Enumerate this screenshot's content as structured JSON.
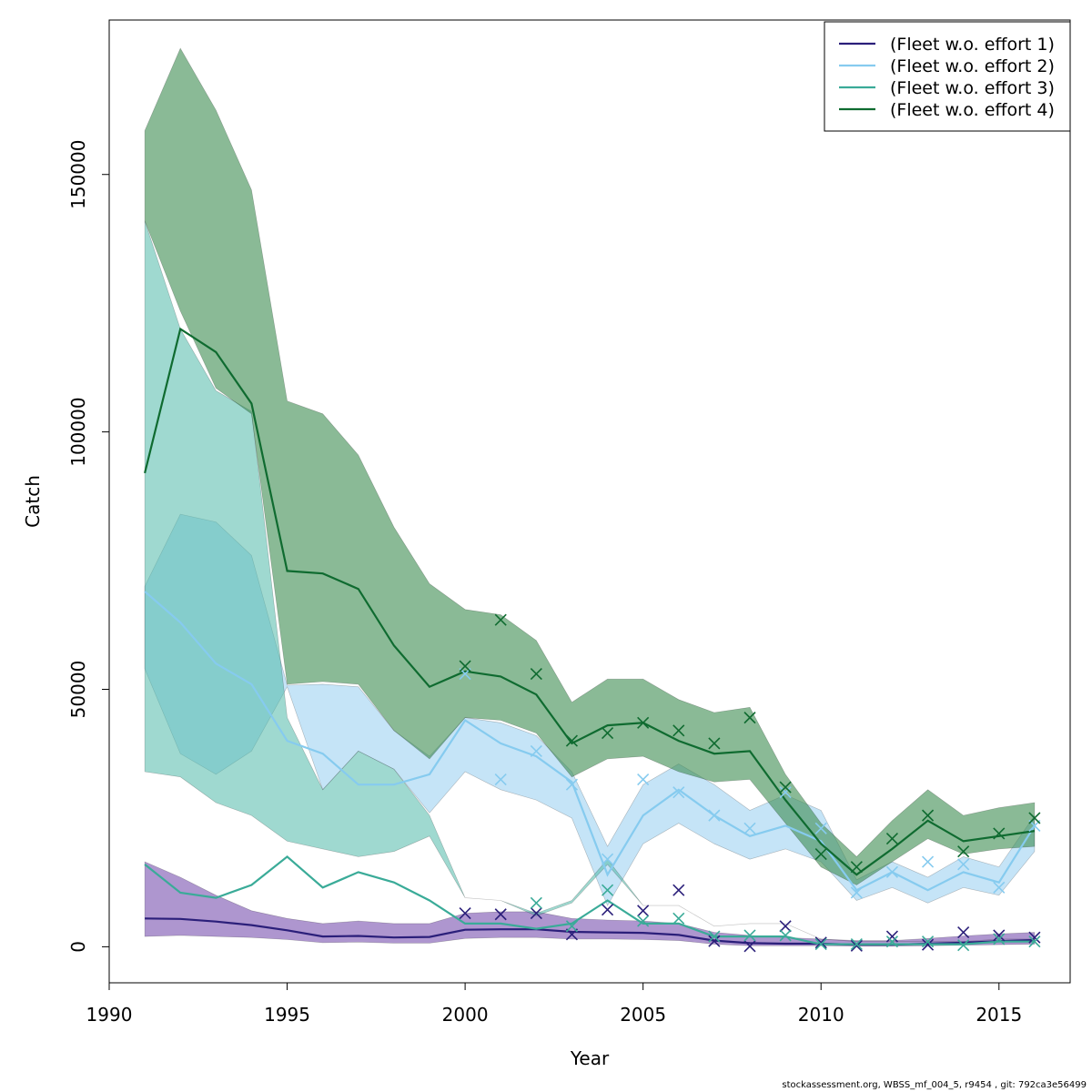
{
  "chart_data": {
    "type": "line",
    "xlabel": "Year",
    "ylabel": "Catch",
    "xlim": [
      1990,
      2017
    ],
    "ylim": [
      -7000,
      180000
    ],
    "xticks": [
      1990,
      1995,
      2000,
      2005,
      2010,
      2015
    ],
    "yticks": [
      0,
      50000,
      100000,
      150000
    ],
    "legend_position": "top-right",
    "x": [
      1991,
      1992,
      1993,
      1994,
      1995,
      1996,
      1997,
      1998,
      1999,
      2000,
      2001,
      2002,
      2003,
      2004,
      2005,
      2006,
      2007,
      2008,
      2009,
      2010,
      2011,
      2012,
      2013,
      2014,
      2015,
      2016
    ],
    "series": [
      {
        "name": "(Fleet w.o. effort 1)",
        "line_color": "#2b1f7a",
        "band_color": "rgba(120,80,175,0.6)",
        "fit": [
          5500,
          5400,
          4900,
          4200,
          3200,
          2000,
          2100,
          1800,
          1900,
          3300,
          3400,
          3400,
          2900,
          2800,
          2700,
          2300,
          1200,
          700,
          600,
          600,
          400,
          400,
          600,
          800,
          1100,
          1300
        ],
        "lower": [
          2000,
          2200,
          2000,
          1800,
          1400,
          800,
          900,
          700,
          700,
          1600,
          1800,
          1800,
          1500,
          1500,
          1400,
          1200,
          500,
          200,
          200,
          200,
          100,
          100,
          200,
          300,
          400,
          500
        ],
        "upper": [
          16500,
          13500,
          10000,
          7000,
          5500,
          4500,
          5000,
          4500,
          4500,
          6500,
          6800,
          6800,
          5500,
          5200,
          5000,
          4500,
          2800,
          2200,
          1800,
          1500,
          1200,
          1200,
          1600,
          2100,
          2500,
          2800
        ],
        "observed": [
          null,
          null,
          null,
          null,
          null,
          null,
          null,
          null,
          null,
          6500,
          6300,
          6500,
          2400,
          7200,
          7000,
          11000,
          1100,
          100,
          4000,
          800,
          200,
          2000,
          400,
          2800,
          2200,
          1800
        ]
      },
      {
        "name": "(Fleet w.o. effort 2)",
        "line_color": "#86cbef",
        "band_color": "rgba(150,205,240,0.55)",
        "fit": [
          69000,
          63000,
          55000,
          51000,
          40000,
          37500,
          31500,
          31500,
          33500,
          44000,
          39500,
          37000,
          32000,
          14000,
          25500,
          30500,
          25500,
          21500,
          23500,
          20500,
          11000,
          14500,
          11000,
          14500,
          12500,
          23500
        ],
        "lower": [
          54000,
          37500,
          33500,
          38000,
          50500,
          30500,
          38000,
          34500,
          26000,
          34000,
          30500,
          28500,
          25000,
          8000,
          20000,
          24000,
          20000,
          17000,
          19000,
          16500,
          9000,
          11500,
          8500,
          11500,
          10000,
          18500
        ],
        "upper": [
          70000,
          84000,
          82500,
          76000,
          50800,
          51000,
          50500,
          42000,
          37000,
          44500,
          43500,
          41000,
          34000,
          19500,
          31500,
          35500,
          31500,
          26500,
          29500,
          26500,
          13000,
          16500,
          13500,
          17500,
          15500,
          25500
        ],
        "observed": [
          null,
          null,
          null,
          null,
          null,
          null,
          null,
          null,
          null,
          53000,
          32500,
          38000,
          31500,
          17000,
          32500,
          30000,
          25500,
          23000,
          30000,
          23000,
          10500,
          14500,
          16500,
          16000,
          11500,
          23500
        ]
      },
      {
        "name": "(Fleet w.o. effort 3)",
        "line_color": "#3aab98",
        "band_color": "rgba(80,185,170,0.55)",
        "fit": [
          16000,
          10500,
          9500,
          12000,
          17500,
          11500,
          14500,
          12500,
          9000,
          4500,
          4500,
          3500,
          4500,
          9000,
          4500,
          4500,
          2000,
          2000,
          2000,
          500,
          500,
          500,
          500,
          500,
          1000,
          1000
        ],
        "lower": [
          34000,
          33000,
          28000,
          25500,
          20500,
          19000,
          17500,
          18500,
          21500,
          9500,
          9000,
          6000,
          8500,
          16000,
          8000,
          8000,
          4000,
          4500,
          4500,
          1500,
          1000,
          1000,
          1000,
          1000,
          1500,
          1500
        ],
        "upper": [
          141000,
          120000,
          108000,
          104000,
          44500,
          30500,
          38000,
          34500,
          25500,
          9500,
          9000,
          6500,
          9000,
          17000,
          8000,
          8000,
          4000,
          4500,
          4500,
          1500,
          1000,
          1000,
          1000,
          1000,
          1500,
          1500
        ],
        "observed": [
          null,
          null,
          null,
          null,
          null,
          null,
          null,
          null,
          null,
          null,
          null,
          8500,
          4000,
          11000,
          5000,
          5500,
          2000,
          2200,
          2200,
          500,
          500,
          1000,
          1000,
          300,
          1500,
          1000
        ]
      },
      {
        "name": "(Fleet w.o. effort 4)",
        "line_color": "#0f6b30",
        "band_color": "rgba(60,140,80,0.6)",
        "fit": [
          92000,
          120000,
          115500,
          105500,
          73000,
          72500,
          69500,
          58500,
          50500,
          53500,
          52500,
          49000,
          39500,
          43000,
          43500,
          40000,
          37500,
          38000,
          28500,
          20000,
          14000,
          19000,
          24500,
          20500,
          21500,
          22500
        ],
        "lower": [
          141000,
          123500,
          108500,
          103500,
          51000,
          51500,
          51000,
          42000,
          36500,
          44500,
          44000,
          41500,
          33000,
          36500,
          37000,
          34000,
          32000,
          32500,
          24000,
          15500,
          12000,
          16500,
          21000,
          18000,
          19000,
          19500
        ],
        "upper": [
          158500,
          174500,
          162500,
          147000,
          106000,
          103500,
          95500,
          81500,
          70500,
          65500,
          64500,
          59500,
          47500,
          52000,
          52000,
          48000,
          45500,
          46500,
          33500,
          24000,
          17500,
          24500,
          30500,
          25500,
          27000,
          28000
        ],
        "observed": [
          null,
          null,
          null,
          null,
          null,
          null,
          null,
          null,
          null,
          54500,
          63500,
          53000,
          40000,
          41500,
          43500,
          42000,
          39500,
          44500,
          31000,
          18000,
          15500,
          21000,
          25500,
          18500,
          22000,
          25000
        ]
      }
    ]
  },
  "footer": "stockassessment.org, WBSS_mf_004_5, r9454 , git: 792ca3e56499"
}
